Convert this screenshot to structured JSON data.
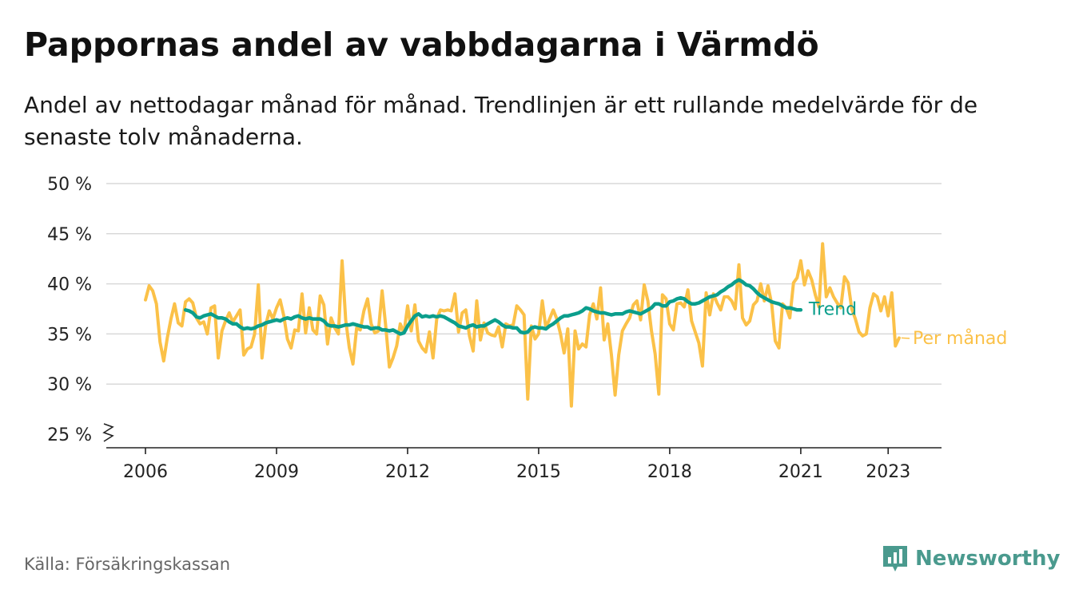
{
  "title": "Pappornas andel av vabbdagarna i Värmdö",
  "subtitle": "Andel av nettodagar månad för månad. Trendlinjen är ett rullande medelvärde för de senaste tolv månaderna.",
  "source": "Källa: Försäkringskassan",
  "brand": "Newsworthy",
  "colors": {
    "trend": "#0b9e8c",
    "monthly": "#fbc148",
    "grid": "#d9d9d9",
    "axis": "#222222",
    "brand": "#4a9a8e"
  },
  "chart_data": {
    "type": "line",
    "x_start": "2006-01",
    "x_end": "2023-05",
    "x_ticks": [
      "2006",
      "2009",
      "2012",
      "2015",
      "2018",
      "2021",
      "2023"
    ],
    "y_ticks": [
      "25 %",
      "30 %",
      "35 %",
      "40 %",
      "45 %",
      "50 %"
    ],
    "ylim": [
      25,
      50
    ],
    "y_axis_broken": true,
    "grid": true,
    "series": [
      {
        "name": "Trend",
        "start": "2006-12",
        "values": [
          37.4,
          37.3,
          37.1,
          36.7,
          36.6,
          36.8,
          36.9,
          37.0,
          36.8,
          36.6,
          36.6,
          36.5,
          36.2,
          36.0,
          36.0,
          35.7,
          35.5,
          35.6,
          35.5,
          35.6,
          35.8,
          35.9,
          36.1,
          36.2,
          36.3,
          36.4,
          36.3,
          36.5,
          36.6,
          36.5,
          36.7,
          36.8,
          36.6,
          36.5,
          36.6,
          36.5,
          36.5,
          36.5,
          36.3,
          35.9,
          35.8,
          35.8,
          35.7,
          35.8,
          35.9,
          35.9,
          36.0,
          35.9,
          35.8,
          35.7,
          35.7,
          35.5,
          35.6,
          35.6,
          35.4,
          35.4,
          35.3,
          35.4,
          35.2,
          35.0,
          35.1,
          35.8,
          36.3,
          36.8,
          37.0,
          36.7,
          36.8,
          36.7,
          36.8,
          36.7,
          36.8,
          36.7,
          36.5,
          36.3,
          36.1,
          35.8,
          35.7,
          35.6,
          35.8,
          35.9,
          35.7,
          35.8,
          35.8,
          36.0,
          36.2,
          36.4,
          36.2,
          35.9,
          35.7,
          35.7,
          35.6,
          35.6,
          35.2,
          35.1,
          35.2,
          35.6,
          35.7,
          35.6,
          35.6,
          35.5,
          35.8,
          36.0,
          36.3,
          36.6,
          36.8,
          36.8,
          36.9,
          37.0,
          37.1,
          37.3,
          37.6,
          37.5,
          37.3,
          37.2,
          37.1,
          37.1,
          37.0,
          36.9,
          37.0,
          37.0,
          37.0,
          37.2,
          37.3,
          37.2,
          37.1,
          37.0,
          37.2,
          37.4,
          37.6,
          38.0,
          38.0,
          37.8,
          37.8,
          38.2,
          38.3,
          38.5,
          38.6,
          38.5,
          38.2,
          38.0,
          38.0,
          38.1,
          38.3,
          38.5,
          38.7,
          38.8,
          38.9,
          39.2,
          39.4,
          39.7,
          39.9,
          40.2,
          40.4,
          40.2,
          39.9,
          39.8,
          39.5,
          39.1,
          38.8,
          38.6,
          38.4,
          38.2,
          38.1,
          38.0,
          37.8,
          37.6,
          37.6,
          37.5,
          37.4,
          37.4
        ]
      },
      {
        "name": "Per månad",
        "start": "2006-01",
        "values": [
          38.4,
          39.8,
          39.3,
          38.0,
          34.2,
          32.3,
          34.6,
          36.5,
          38.0,
          36.1,
          35.8,
          38.2,
          38.5,
          38.1,
          36.6,
          36.0,
          36.2,
          35.0,
          37.6,
          37.8,
          32.6,
          35.3,
          36.3,
          37.1,
          36.2,
          36.8,
          37.4,
          32.9,
          33.5,
          33.7,
          35.0,
          39.9,
          32.6,
          35.8,
          37.3,
          36.5,
          37.6,
          38.4,
          36.8,
          34.5,
          33.6,
          35.4,
          35.3,
          39.0,
          35.1,
          37.6,
          35.4,
          35.0,
          38.8,
          37.9,
          34.0,
          36.6,
          35.6,
          35.0,
          42.3,
          36.4,
          33.6,
          32.0,
          35.6,
          35.4,
          37.3,
          38.5,
          36.0,
          35.1,
          35.3,
          39.3,
          35.8,
          31.7,
          32.6,
          33.8,
          36.0,
          35.1,
          37.8,
          35.3,
          37.9,
          34.3,
          33.6,
          33.2,
          35.2,
          32.6,
          36.5,
          37.4,
          37.3,
          37.4,
          37.3,
          39.0,
          35.2,
          37.1,
          37.4,
          34.8,
          33.3,
          38.3,
          34.4,
          36.1,
          35.1,
          34.9,
          34.8,
          35.7,
          33.7,
          36.0,
          35.8,
          35.9,
          37.8,
          37.4,
          36.9,
          28.5,
          35.8,
          34.5,
          35.0,
          38.3,
          35.6,
          36.5,
          37.4,
          36.5,
          35.0,
          33.1,
          35.5,
          27.8,
          35.3,
          33.5,
          34.0,
          33.7,
          36.9,
          38.0,
          36.5,
          39.6,
          34.4,
          36.0,
          32.9,
          28.9,
          32.9,
          35.3,
          36.0,
          36.6,
          37.9,
          38.3,
          36.4,
          39.9,
          38.3,
          35.3,
          33.0,
          29.0,
          38.9,
          38.5,
          36.0,
          35.4,
          38.0,
          38.1,
          37.7,
          39.4,
          36.3,
          35.2,
          34.1,
          31.8,
          39.1,
          36.9,
          39.0,
          38.1,
          37.4,
          38.7,
          38.7,
          38.3,
          37.5,
          41.9,
          36.6,
          35.9,
          36.3,
          37.9,
          38.3,
          40.0,
          38.3,
          39.8,
          38.0,
          34.3,
          33.6,
          38.0,
          37.6,
          36.6,
          40.1,
          40.6,
          42.3,
          39.9,
          41.3,
          40.4,
          38.9,
          37.7,
          44.0,
          38.7,
          39.6,
          38.7,
          38.1,
          37.6,
          40.7,
          40.1,
          37.5,
          36.5,
          35.2,
          34.8,
          35.0,
          37.6,
          39.0,
          38.7,
          37.3,
          38.7,
          36.8,
          39.1,
          33.8,
          34.6
        ]
      }
    ]
  }
}
